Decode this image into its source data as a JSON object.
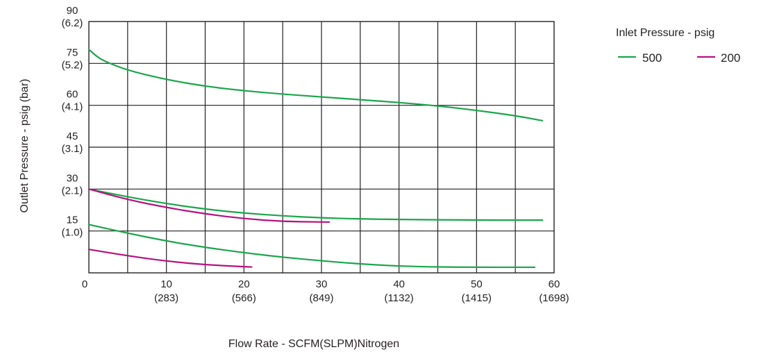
{
  "chart_data": {
    "type": "line",
    "xlabel": "Flow Rate - SCFM(SLPM)Nitrogen",
    "ylabel": "Outlet Pressure - psig (bar)",
    "xlim": [
      0,
      60
    ],
    "ylim": [
      0,
      90
    ],
    "grid": true,
    "x_ticks": [
      {
        "value": 0,
        "label": "0",
        "sub": ""
      },
      {
        "value": 10,
        "label": "10",
        "sub": "(283)"
      },
      {
        "value": 20,
        "label": "20",
        "sub": "(566)"
      },
      {
        "value": 30,
        "label": "30",
        "sub": "(849)"
      },
      {
        "value": 40,
        "label": "40",
        "sub": "(1132)"
      },
      {
        "value": 50,
        "label": "50",
        "sub": "(1415)"
      },
      {
        "value": 60,
        "label": "60",
        "sub": "(1698)"
      }
    ],
    "y_ticks": [
      {
        "value": 15,
        "label": "15",
        "sub": "(1.0)"
      },
      {
        "value": 30,
        "label": "30",
        "sub": "(2.1)"
      },
      {
        "value": 45,
        "label": "45",
        "sub": "(3.1)"
      },
      {
        "value": 60,
        "label": "60",
        "sub": "(4.1)"
      },
      {
        "value": 75,
        "label": "75",
        "sub": "(5.2)"
      },
      {
        "value": 90,
        "label": "90",
        "sub": "(6.2)"
      }
    ],
    "legend": {
      "title": "Inlet Pressure - psig",
      "placement": "top-right",
      "entries": [
        {
          "label": "500",
          "color": "#1aa64b"
        },
        {
          "label": "200",
          "color": "#b5127e"
        }
      ]
    },
    "series": [
      {
        "inlet": "500",
        "color": "#1aa64b",
        "x": [
          0,
          1,
          2,
          5,
          10,
          15,
          20,
          25,
          30,
          35,
          40,
          45,
          50,
          55,
          58.5
        ],
        "y": [
          80,
          77.5,
          75.8,
          72.5,
          69.2,
          66.8,
          65.2,
          64,
          63,
          62,
          61,
          59.8,
          58.2,
          56.3,
          54.5
        ]
      },
      {
        "inlet": "500",
        "color": "#1aa64b",
        "x": [
          0,
          5,
          10,
          15,
          20,
          25,
          30,
          35,
          40,
          45,
          50,
          55,
          58.5
        ],
        "y": [
          30,
          27.2,
          24.8,
          22.8,
          21.4,
          20.4,
          19.7,
          19.3,
          19.1,
          19,
          18.9,
          18.9,
          18.9
        ]
      },
      {
        "inlet": "500",
        "color": "#1aa64b",
        "x": [
          0,
          5,
          10,
          15,
          20,
          25,
          30,
          35,
          40,
          45,
          50,
          55,
          57.5
        ],
        "y": [
          17.3,
          14.2,
          11.4,
          9.1,
          7.2,
          5.6,
          4.3,
          3.2,
          2.4,
          2.1,
          2,
          2,
          2
        ]
      },
      {
        "inlet": "200",
        "color": "#b5127e",
        "x": [
          0,
          5,
          10,
          15,
          20,
          25,
          30,
          31
        ],
        "y": [
          30,
          26.2,
          23.4,
          21.1,
          19.4,
          18.4,
          18.2,
          18.2
        ]
      },
      {
        "inlet": "200",
        "color": "#b5127e",
        "x": [
          0,
          5,
          10,
          15,
          20,
          21
        ],
        "y": [
          8.4,
          6.1,
          4.2,
          2.9,
          2.2,
          2.1
        ]
      }
    ]
  }
}
